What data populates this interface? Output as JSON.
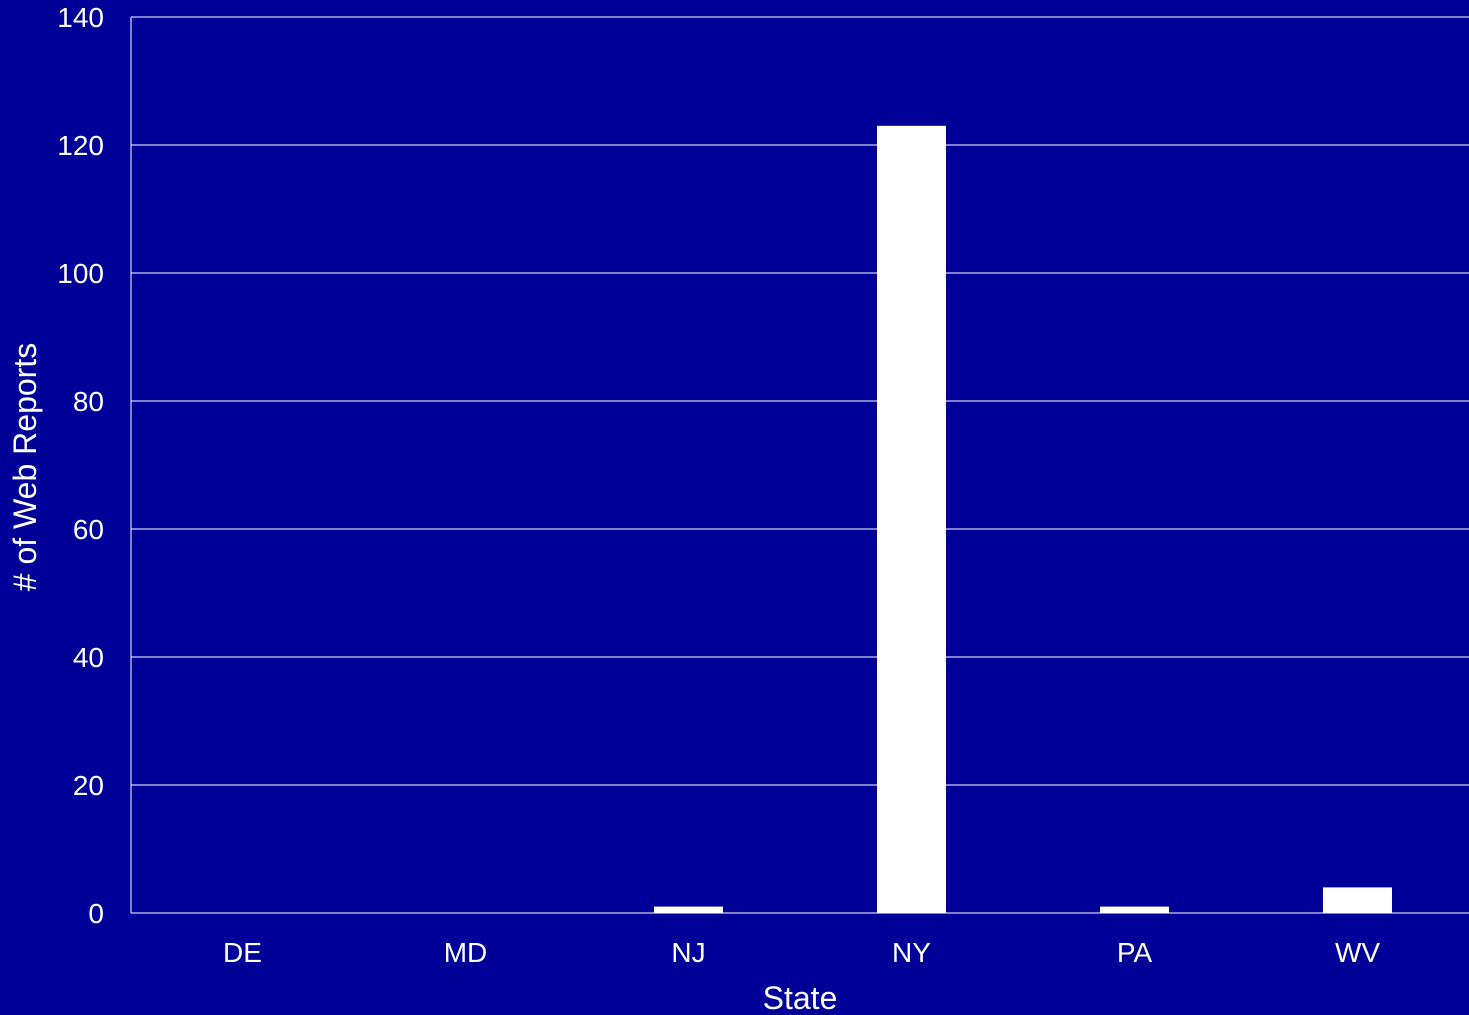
{
  "colors": {
    "background": "#000099",
    "bar": "#ffffff",
    "grid": "#ffffff",
    "text": "#ffffff"
  },
  "chart_data": {
    "type": "bar",
    "categories": [
      "DE",
      "MD",
      "NJ",
      "NY",
      "PA",
      "WV"
    ],
    "values": [
      0,
      0,
      1,
      123,
      1,
      4
    ],
    "xlabel": "State",
    "ylabel": "# of Web Reports",
    "ylim": [
      0,
      140
    ],
    "yticks": [
      0,
      20,
      40,
      60,
      80,
      100,
      120,
      140
    ],
    "grid": true,
    "legend": "none"
  }
}
